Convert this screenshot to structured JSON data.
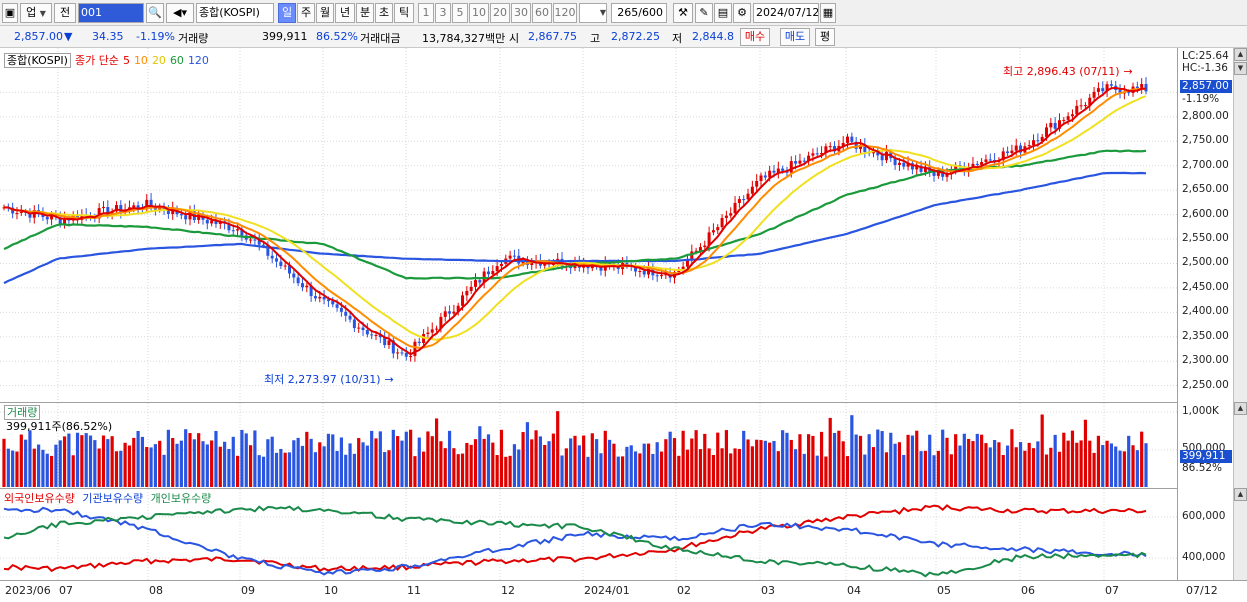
{
  "toolbar": {
    "market": "업",
    "prev": "전",
    "code": "001",
    "index_name": "종합(KOSPI)",
    "periods": [
      "일",
      "주",
      "월",
      "년",
      "분",
      "초",
      "틱"
    ],
    "active_period": "일",
    "intervals": [
      "1",
      "3",
      "5",
      "10",
      "20",
      "30",
      "60",
      "120"
    ],
    "count": "265/600",
    "date": "2024/07/12"
  },
  "quote": {
    "price": "2,857.00",
    "change": "34.35",
    "change_pct": "-1.19%",
    "volume_label": "거래량",
    "volume": "399,911",
    "volume_pct": "86.52%",
    "amount_label": "거래대금",
    "amount": "13,784,327백만",
    "open_label": "시",
    "open": "2,867.75",
    "high_label": "고",
    "high": "2,872.25",
    "low_label": "저",
    "low": "2,844.8",
    "buy_btn": "매수",
    "sell_btn": "매도",
    "eval_btn": "평"
  },
  "price_pane": {
    "title": "종합(KOSPI)",
    "ma_label": "종가 단순",
    "ma": [
      {
        "period": "5",
        "color": "#e00000"
      },
      {
        "period": "10",
        "color": "#ff8c00"
      },
      {
        "period": "20",
        "color": "#f0e020"
      },
      {
        "period": "60",
        "color": "#1a9a3a"
      },
      {
        "period": "120",
        "color": "#2a55e0"
      }
    ],
    "high_note": "최고 2,896.43 (07/11)",
    "low_note": "최저 2,273.97 (10/31)",
    "lc": "LC:25.64",
    "hc": "HC:-1.36",
    "last_price": "2,857.00",
    "last_pct": "-1.19%",
    "yticks": [
      "2,850.00",
      "2,800.00",
      "2,750.00",
      "2,700.00",
      "2,650.00",
      "2,600.00",
      "2,550.00",
      "2,500.00",
      "2,450.00",
      "2,400.00",
      "2,350.00",
      "2,300.00",
      "2,250.00"
    ],
    "ylim": [
      2235,
      2900
    ]
  },
  "volume_pane": {
    "title": "거래량",
    "value": "399,911주(86.52%)",
    "yticks": [
      "1,000K",
      "500,000"
    ],
    "last": "399,911",
    "last_pct": "86.52%"
  },
  "holding_pane": {
    "series": [
      {
        "name": "외국인보유수량",
        "color": "#e00000"
      },
      {
        "name": "기관보유수량",
        "color": "#2a55e0"
      },
      {
        "name": "개인보유수량",
        "color": "#1a8a4a"
      }
    ],
    "yticks": [
      "600,000",
      "400,000"
    ]
  },
  "xaxis": {
    "labels": [
      "2023/06",
      "07",
      "08",
      "09",
      "10",
      "11",
      "12",
      "2024/01",
      "02",
      "03",
      "04",
      "05",
      "06",
      "07"
    ],
    "right_label": "07/12"
  },
  "chart_data": {
    "type": "line",
    "title": "종합(KOSPI)",
    "xlabel": "",
    "ylabel": "",
    "ylim": [
      2235,
      2900
    ],
    "x": [
      "2023/06",
      "07",
      "08",
      "09",
      "10",
      "11",
      "12",
      "2024/01",
      "02",
      "03",
      "04",
      "05",
      "06",
      "07"
    ],
    "series": [
      {
        "name": "종가",
        "values": [
          2615,
          2590,
          2620,
          2570,
          2420,
          2310,
          2510,
          2500,
          2480,
          2670,
          2750,
          2680,
          2735,
          2857
        ]
      },
      {
        "name": "60",
        "values": [
          2530,
          2580,
          2575,
          2555,
          2540,
          2470,
          2470,
          2500,
          2510,
          2560,
          2640,
          2690,
          2700,
          2730
        ]
      },
      {
        "name": "120",
        "values": [
          2460,
          2510,
          2530,
          2540,
          2520,
          2510,
          2505,
          2505,
          2505,
          2520,
          2560,
          2620,
          2650,
          2685
        ]
      }
    ],
    "extremes": {
      "high": 2896.43,
      "high_date": "07/11",
      "low": 2273.97,
      "low_date": "10/31"
    }
  }
}
